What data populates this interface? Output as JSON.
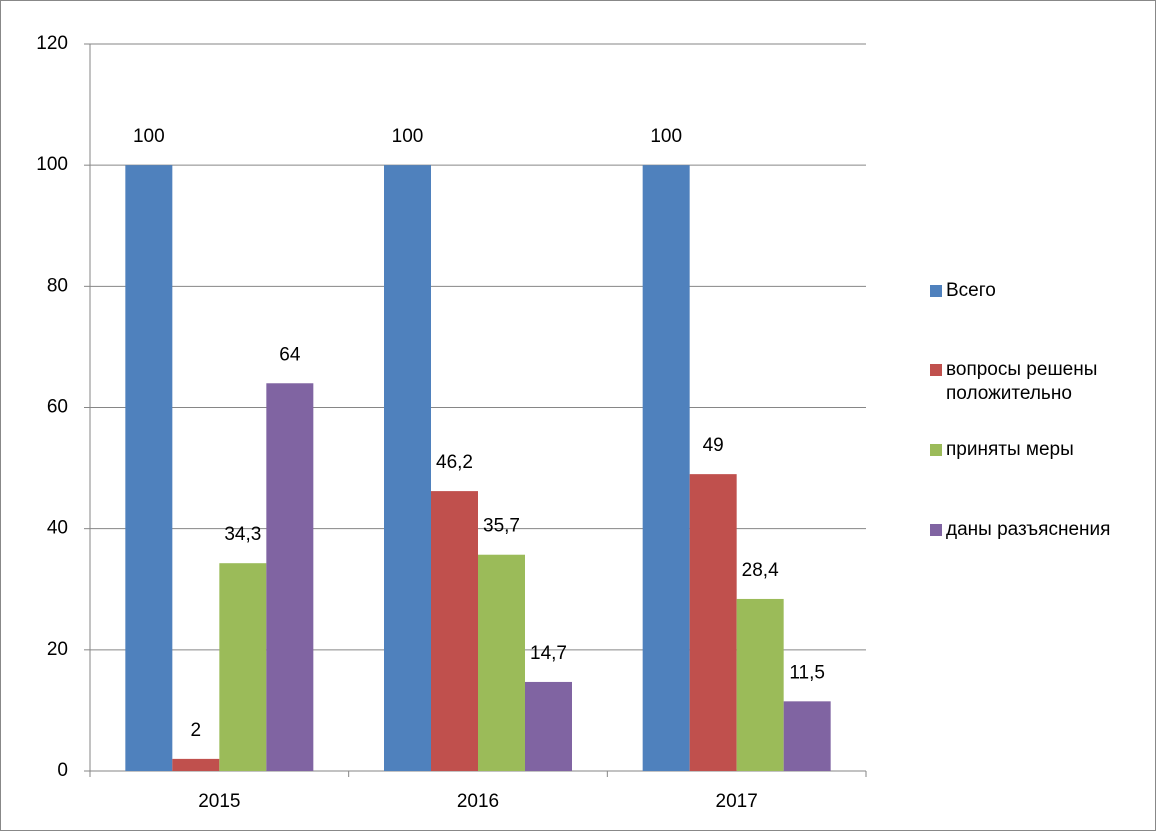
{
  "chart_data": {
    "type": "bar",
    "categories": [
      "2015",
      "2016",
      "2017"
    ],
    "series": [
      {
        "name": "Всего",
        "color": "#4f81bd",
        "values": [
          100,
          100,
          100
        ],
        "value_labels": [
          "100",
          "100",
          "100"
        ]
      },
      {
        "name": "вопросы решены положительно",
        "color": "#c0504d",
        "values": [
          2,
          46.2,
          49
        ],
        "value_labels": [
          "2",
          "46,2",
          "49"
        ]
      },
      {
        "name": "приняты меры",
        "color": "#9bbb59",
        "values": [
          34.3,
          35.7,
          28.4
        ],
        "value_labels": [
          "34,3",
          "35,7",
          "28,4"
        ]
      },
      {
        "name": "даны разъяснения",
        "color": "#8064a2",
        "values": [
          64,
          14.7,
          11.5
        ],
        "value_labels": [
          "64",
          "14,7",
          "11,5"
        ]
      }
    ],
    "ylim": [
      0,
      120
    ],
    "yticks": [
      0,
      20,
      40,
      60,
      80,
      100,
      120
    ],
    "grid": true,
    "legend": "right"
  }
}
